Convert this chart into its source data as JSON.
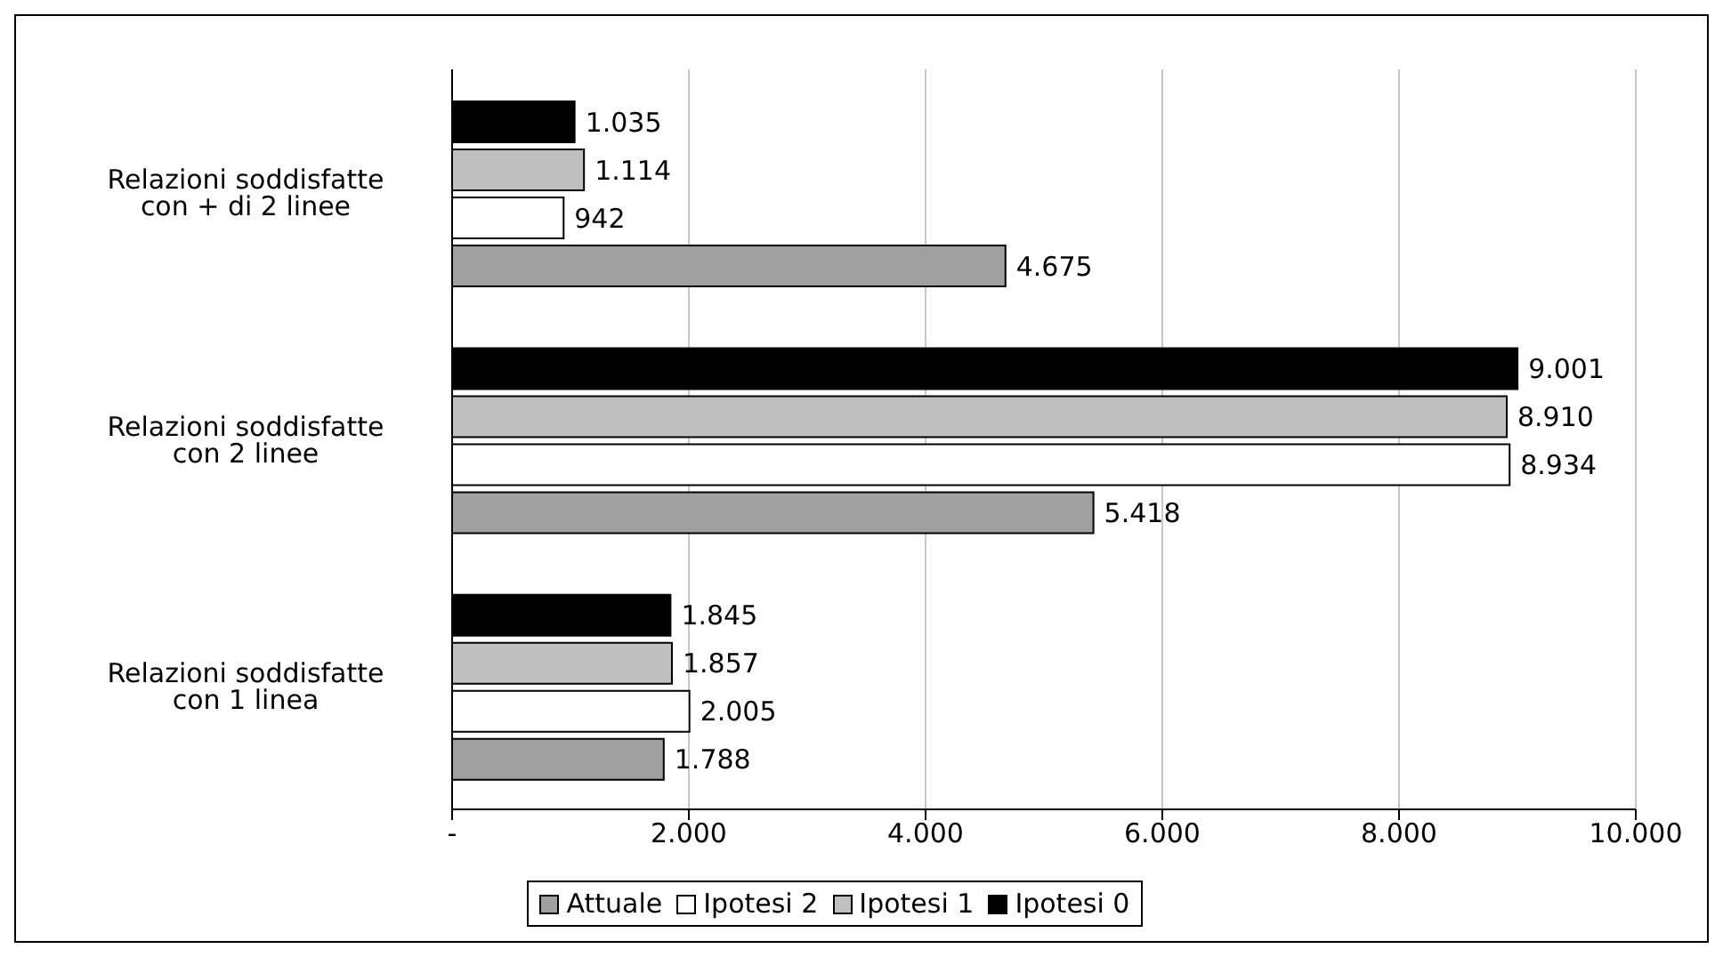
{
  "chart_data": {
    "type": "bar",
    "orientation": "horizontal",
    "categories": [
      "Relazioni soddisfatte con + di 2 linee",
      "Relazioni soddisfatte con 2 linee",
      "Relazioni soddisfatte con 1 linea"
    ],
    "series": [
      {
        "name": "Attuale",
        "color": "#a0a0a0",
        "values": [
          4675,
          5418,
          1788
        ],
        "value_labels": [
          "4.675",
          "5.418",
          "1.788"
        ]
      },
      {
        "name": "Ipotesi 2",
        "color": "#ffffff",
        "values": [
          942,
          8934,
          2005
        ],
        "value_labels": [
          "942",
          "8.934",
          "2.005"
        ]
      },
      {
        "name": "Ipotesi 1",
        "color": "#c0c0c0",
        "values": [
          1114,
          8910,
          1857
        ],
        "value_labels": [
          "1.114",
          "8.910",
          "1.857"
        ]
      },
      {
        "name": "Ipotesi 0",
        "color": "#000000",
        "values": [
          1035,
          9001,
          1845
        ],
        "value_labels": [
          "1.035",
          "9.001",
          "1.845"
        ]
      }
    ],
    "xlim": [
      0,
      10000
    ],
    "xticks": [
      {
        "value": 0,
        "label": "-"
      },
      {
        "value": 2000,
        "label": "2.000"
      },
      {
        "value": 4000,
        "label": "4.000"
      },
      {
        "value": 6000,
        "label": "6.000"
      },
      {
        "value": 8000,
        "label": "8.000"
      },
      {
        "value": 10000,
        "label": "10.000"
      }
    ],
    "grid": "x",
    "legend": "bottom"
  }
}
